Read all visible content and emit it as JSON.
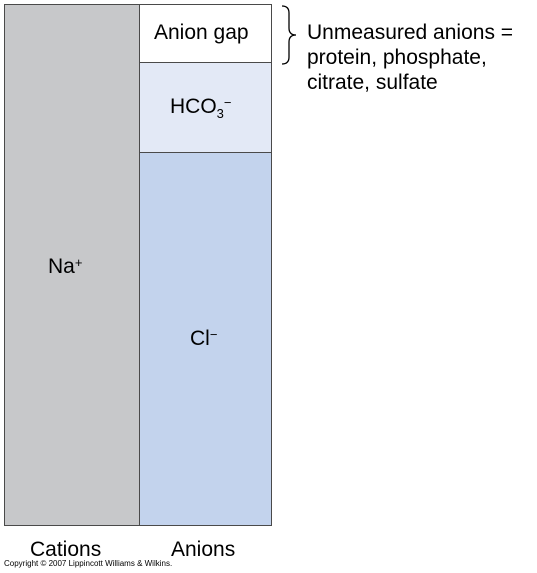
{
  "cations": {
    "label": "Cations",
    "ion": {
      "base": "Na",
      "sup": "+"
    }
  },
  "anions": {
    "label": "Anions",
    "anion_gap": "Anion gap",
    "bicarbonate": {
      "base": "HCO",
      "sub": "3",
      "sup": "−"
    },
    "chloride": {
      "base": "Cl",
      "sup": "−"
    }
  },
  "annotation": {
    "lines": [
      "Unmeasured anions =",
      "protein, phosphate,",
      "citrate, sulfate"
    ]
  },
  "copyright": "Copyright © 2007 Lippincott Williams & Wilkins.",
  "colors": {
    "cations_fill": "#c7c8ca",
    "anion_gap_fill": "#ffffff",
    "bicarbonate_fill": "#e3e9f6",
    "chloride_fill": "#c3d3ed",
    "border": "#4a4a4a"
  }
}
